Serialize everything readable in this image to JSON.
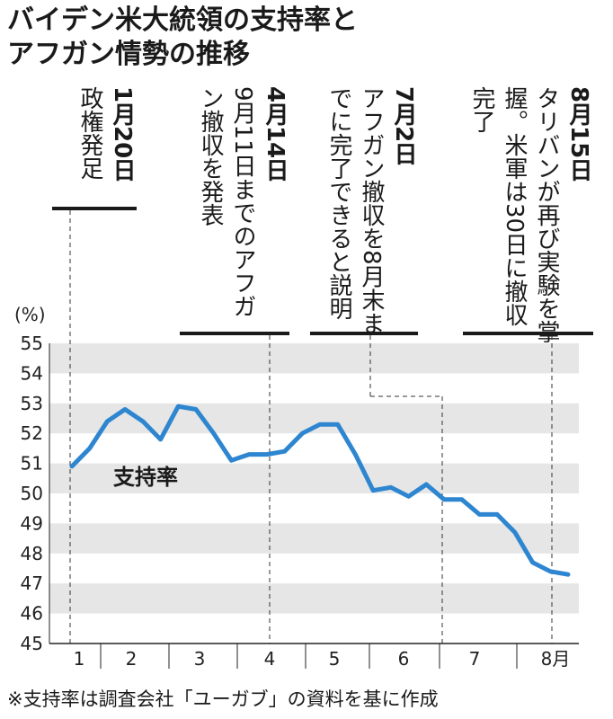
{
  "title": {
    "line1": "バイデン米大統領の支持率と",
    "line2": "アフガン情勢の推移"
  },
  "note": "※支持率は調査会社「ユーガブ」の資料を基に作成",
  "series_label": "支持率",
  "unit_label": "(%)",
  "events": [
    {
      "date": "1月20日",
      "text": "政権発足"
    },
    {
      "date": "4月14日",
      "text": "9月11日までのアフガン撤収を発表"
    },
    {
      "date": "7月2日",
      "text": "アフガン撤収を8月末までに完了できると説明"
    },
    {
      "date": "8月15日",
      "text": "タリバンが再び実験を掌握。米軍は30日に撤収完了"
    }
  ],
  "chart_data": {
    "type": "line",
    "title": "バイデン米大統領の支持率とアフガン情勢の推移",
    "ylabel": "(%)",
    "ylim": [
      45,
      55
    ],
    "yticks": [
      "45",
      "46",
      "47",
      "48",
      "49",
      "50",
      "51",
      "52",
      "53",
      "54",
      "55"
    ],
    "xticks": [
      "1",
      "2",
      "3",
      "4",
      "5",
      "6",
      "7",
      "8月"
    ],
    "series": [
      {
        "name": "支持率",
        "color": "#2e86d0",
        "values": [
          50.9,
          51.5,
          52.4,
          52.8,
          52.4,
          51.8,
          52.9,
          52.8,
          52.0,
          51.1,
          51.3,
          51.3,
          51.4,
          52.0,
          52.3,
          52.3,
          51.3,
          50.1,
          50.2,
          49.9,
          50.3,
          49.8,
          49.8,
          49.3,
          49.3,
          48.7,
          47.7,
          47.4,
          47.3
        ]
      }
    ],
    "grid": "alternating horizontal bands"
  }
}
